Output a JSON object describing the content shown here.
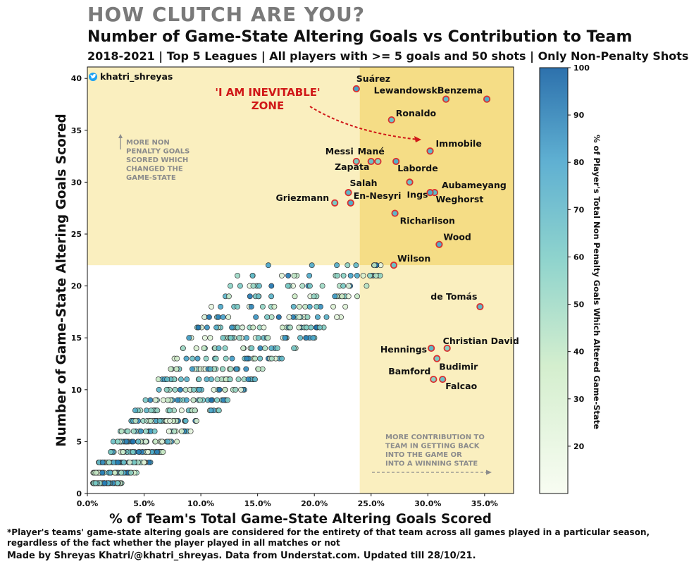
{
  "header": {
    "title": "HOW CLUTCH ARE YOU?",
    "subtitle": "Number of Game-State Altering Goals vs Contribution to Team",
    "subtitle2": "2018-2021 | Top 5 Leagues | All players with >= 5 goals and 50 shots | Only Non-Penalty Shots"
  },
  "footer": {
    "note": "*Player's teams' game-state altering goals are considered for the entirety of that team across all games played in a particular season, regardless of the fact whether the player played in all matches or not",
    "credit": "Made by Shreyas Khatri/@khatri_shreyas. Data from Understat.com. Updated till 28/10/21."
  },
  "handle": "khatri_shreyas",
  "annotations": {
    "inevitable": [
      "'I AM INEVITABLE'",
      "ZONE"
    ],
    "more_non_penalty": [
      "MORE NON",
      "PENALTY GOALS",
      "SCORED WHICH",
      "CHANGED THE",
      "GAME-STATE"
    ],
    "more_contribution": [
      "MORE CONTRIBUTION TO",
      "TEAM IN GETTING BACK",
      "INTO THE GAME OR",
      "INTO A WINNING STATE"
    ]
  },
  "colors": {
    "zone_light": "#faefbf",
    "zone_dark": "#f5dd86",
    "highlight_edge": "#d93030",
    "annotation_red": "#d01818",
    "annotation_gray": "#8c8c8c",
    "twitter_blue": "#1da1f2"
  },
  "chart_data": {
    "type": "scatter",
    "xlabel": "% of Team's Total Game-State Altering Goals Scored",
    "ylabel": "Number of Game-State Altering Goals Scored",
    "colorbar_label": "% of Player's Total Non Penalty Goals Which Altered Game-State",
    "xlim": [
      0,
      0.372
    ],
    "ylim": [
      0,
      41
    ],
    "clim": [
      10,
      100
    ],
    "xticks": [
      0,
      0.05,
      0.1,
      0.15,
      0.2,
      0.25,
      0.3,
      0.35
    ],
    "xtick_labels": [
      "0.0%",
      "5.0%",
      "10.0%",
      "15.0%",
      "20.0%",
      "25.0%",
      "30.0%",
      "35.0%"
    ],
    "yticks": [
      0,
      5,
      10,
      15,
      20,
      25,
      30,
      35,
      40
    ],
    "ytick_labels": [
      "0",
      "5",
      "10",
      "15",
      "20",
      "25",
      "30",
      "35",
      "40"
    ],
    "cticks": [
      20,
      30,
      40,
      50,
      60,
      70,
      80,
      90,
      100
    ],
    "zones": {
      "x_threshold": 0.24,
      "y_threshold": 22
    },
    "highlighted": [
      {
        "name": "Suárez",
        "x": 0.237,
        "y": 39,
        "c": 80
      },
      {
        "name": "Lewandowski",
        "x": 0.316,
        "y": 38,
        "c": 70
      },
      {
        "name": "Benzema",
        "x": 0.352,
        "y": 38,
        "c": 75
      },
      {
        "name": "Ronaldo",
        "x": 0.268,
        "y": 36,
        "c": 65
      },
      {
        "name": "Immobile",
        "x": 0.302,
        "y": 33,
        "c": 70
      },
      {
        "name": "Messi",
        "x": 0.237,
        "y": 32,
        "c": 60
      },
      {
        "name": "Mané",
        "x": 0.25,
        "y": 32,
        "c": 65
      },
      {
        "name": "Zapata",
        "x": 0.256,
        "y": 32,
        "c": 55
      },
      {
        "name": "Laborde",
        "x": 0.272,
        "y": 32,
        "c": 75
      },
      {
        "name": "Aubameyang",
        "x": 0.306,
        "y": 29,
        "c": 70
      },
      {
        "name": "Ings",
        "x": 0.284,
        "y": 30,
        "c": 65
      },
      {
        "name": "Weghorst",
        "x": 0.302,
        "y": 29,
        "c": 75
      },
      {
        "name": "Salah",
        "x": 0.23,
        "y": 29,
        "c": 70
      },
      {
        "name": "Griezmann",
        "x": 0.218,
        "y": 28,
        "c": 60
      },
      {
        "name": "En-Nesyri",
        "x": 0.232,
        "y": 28,
        "c": 75
      },
      {
        "name": "Richarlison",
        "x": 0.271,
        "y": 27,
        "c": 70
      },
      {
        "name": "Wood",
        "x": 0.31,
        "y": 24,
        "c": 75
      },
      {
        "name": "Wilson",
        "x": 0.27,
        "y": 22,
        "c": 65
      },
      {
        "name": "de Tomás",
        "x": 0.346,
        "y": 18,
        "c": 70
      },
      {
        "name": "Christian David",
        "x": 0.317,
        "y": 14,
        "c": 55
      },
      {
        "name": "Hennings",
        "x": 0.303,
        "y": 14,
        "c": 70
      },
      {
        "name": "Budimir",
        "x": 0.308,
        "y": 13,
        "c": 60
      },
      {
        "name": "Bamford",
        "x": 0.305,
        "y": 11,
        "c": 55
      },
      {
        "name": "Falcao",
        "x": 0.313,
        "y": 11,
        "c": 65
      }
    ]
  }
}
